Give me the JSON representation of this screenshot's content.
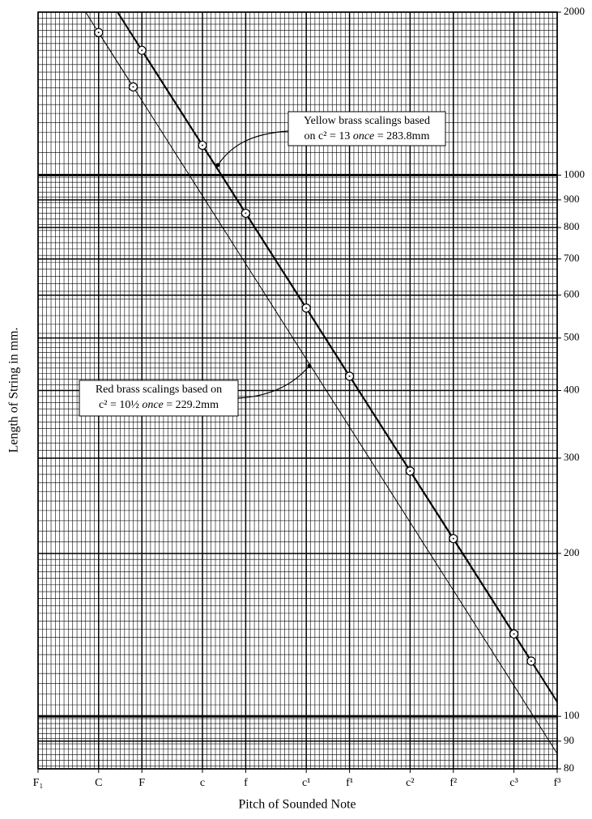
{
  "chart_data": {
    "type": "line",
    "x_label": "Pitch of Sounded Note",
    "y_label": "Length of String in mm.",
    "xlim": [
      0,
      60
    ],
    "xticks": [
      {
        "value": 0,
        "label": "F₁"
      },
      {
        "value": 7,
        "label": "C"
      },
      {
        "value": 12,
        "label": "F"
      },
      {
        "value": 19,
        "label": "c"
      },
      {
        "value": 24,
        "label": "f"
      },
      {
        "value": 31,
        "label": "c¹"
      },
      {
        "value": 36,
        "label": "f¹"
      },
      {
        "value": 43,
        "label": "c²"
      },
      {
        "value": 48,
        "label": "f²"
      },
      {
        "value": 55,
        "label": "c³"
      },
      {
        "value": 60,
        "label": "f³"
      }
    ],
    "ylim": [
      80,
      2000
    ],
    "yticks": [
      80,
      90,
      100,
      200,
      300,
      400,
      500,
      600,
      700,
      800,
      900,
      1000,
      2000
    ],
    "log_y": true,
    "grid": true,
    "series": [
      {
        "color": "#000000",
        "line_width": 2,
        "x": [
          12,
          19,
          24,
          31,
          36,
          43,
          48,
          55,
          57
        ],
        "values": [
          1700,
          1135,
          850,
          568,
          425,
          284,
          213,
          142,
          126.5
        ]
      },
      {
        "color": "#000000",
        "line_width": 1,
        "x": [
          7,
          11
        ],
        "values": [
          1834,
          1455
        ]
      }
    ],
    "annotations": [
      {
        "lines": [
          [
            "Yellow brass scalings based"
          ],
          [
            "on c² = 13 ",
            "once",
            " = 283.8mm"
          ]
        ]
      },
      {
        "lines": [
          [
            "Red brass scalings based on"
          ],
          [
            "c² = 10½ ",
            "once",
            " = 229.2mm"
          ]
        ]
      }
    ]
  }
}
